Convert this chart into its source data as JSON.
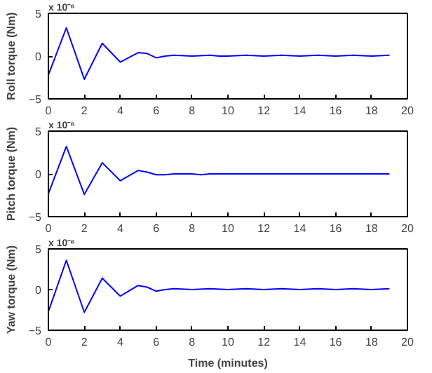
{
  "chart_data": [
    {
      "type": "line",
      "ylabel": "Roll torque (Nm)",
      "annotations": [
        "x 10⁻⁶"
      ],
      "x": [
        0,
        1,
        2,
        3,
        4,
        5,
        5.5,
        6,
        6.5,
        7,
        8,
        9,
        9.5,
        10,
        11,
        12,
        13,
        14,
        15,
        16,
        17,
        18,
        19
      ],
      "series": [
        {
          "color": "#0000ff",
          "values": [
            -2.2,
            3.3,
            -2.7,
            1.5,
            -0.7,
            0.4,
            0.3,
            -0.2,
            0,
            0.1,
            0,
            0.1,
            0,
            0,
            0.1,
            0,
            0.1,
            0,
            0.1,
            0,
            0.1,
            0,
            0.1
          ]
        }
      ],
      "xlim": [
        0,
        20
      ],
      "ylim": [
        -5,
        5
      ],
      "xticks": [
        0,
        2,
        4,
        6,
        8,
        10,
        12,
        14,
        16,
        18,
        20
      ],
      "yticks": [
        -5,
        0,
        5
      ],
      "grid": false
    },
    {
      "type": "line",
      "ylabel": "Pitch torque (Nm)",
      "annotations": [
        "x 10⁻⁶"
      ],
      "x": [
        0,
        1,
        2,
        3,
        4,
        5,
        5.5,
        6,
        6.5,
        7,
        8,
        8.5,
        9,
        10,
        12,
        14,
        16,
        18,
        19
      ],
      "series": [
        {
          "color": "#0000ff",
          "values": [
            -2.3,
            3.2,
            -2.4,
            1.3,
            -0.8,
            0.4,
            0.2,
            -0.1,
            -0.1,
            0,
            0,
            -0.1,
            0,
            0,
            0,
            0,
            0,
            0,
            0
          ]
        }
      ],
      "xlim": [
        0,
        20
      ],
      "ylim": [
        -5,
        5
      ],
      "xticks": [
        0,
        2,
        4,
        6,
        8,
        10,
        12,
        14,
        16,
        18,
        20
      ],
      "yticks": [
        -5,
        0,
        5
      ],
      "grid": false
    },
    {
      "type": "line",
      "ylabel": "Yaw torque (Nm)",
      "xlabel": "Time (minutes)",
      "annotations": [
        "x 10⁻⁶"
      ],
      "x": [
        0,
        1,
        2,
        3,
        4,
        5,
        5.5,
        6,
        6.5,
        7,
        8,
        9,
        10,
        11,
        12,
        13,
        14,
        15,
        16,
        17,
        18,
        19
      ],
      "series": [
        {
          "color": "#0000ff",
          "values": [
            -2.7,
            3.6,
            -2.8,
            1.4,
            -0.8,
            0.5,
            0.3,
            -0.2,
            0,
            0.1,
            0,
            0.1,
            0,
            0.1,
            0,
            0.1,
            0,
            0.1,
            0,
            0.1,
            0,
            0.1
          ]
        }
      ],
      "xlim": [
        0,
        20
      ],
      "ylim": [
        -5,
        5
      ],
      "xticks": [
        0,
        2,
        4,
        6,
        8,
        10,
        12,
        14,
        16,
        18,
        20
      ],
      "yticks": [
        -5,
        0,
        5
      ],
      "grid": false
    }
  ]
}
